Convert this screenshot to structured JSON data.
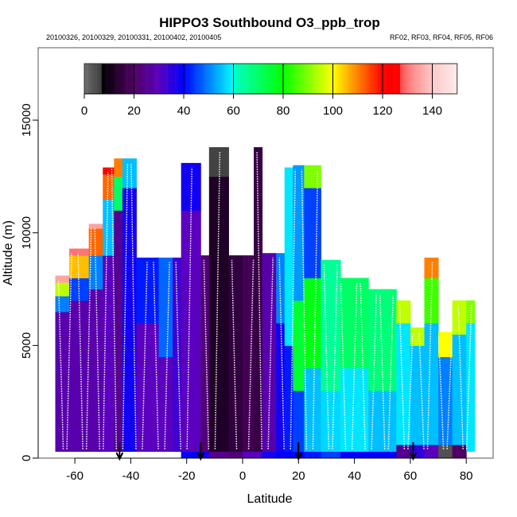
{
  "chart_data": {
    "type": "heatmap",
    "title": "HIPPO3 Southbound O3_ppb_trop",
    "subtitle_left": "20100326, 20100329, 20100331, 20100402, 20100405",
    "subtitle_right": "RF02, RF03, RF04, RF05, RF06",
    "xlabel": "Latitude",
    "ylabel": "Altitude (m)",
    "xlim": [
      -73,
      90
    ],
    "ylim": [
      0,
      18200
    ],
    "xticks": [
      -60,
      -40,
      -20,
      0,
      20,
      40,
      60,
      80
    ],
    "yticks": [
      0,
      5000,
      10000,
      15000
    ],
    "colorbar": {
      "range": [
        0,
        150
      ],
      "ticks": [
        0,
        20,
        40,
        60,
        80,
        100,
        120,
        140
      ]
    },
    "flight_boundaries_lat": [
      -44,
      -15,
      20,
      61
    ],
    "columns": [
      {
        "lat": [
          -67,
          -62
        ],
        "layers": [
          [
            300,
            6500,
            28
          ],
          [
            6500,
            7200,
            50
          ],
          [
            7200,
            7800,
            95
          ],
          [
            7800,
            8100,
            135
          ]
        ]
      },
      {
        "lat": [
          -62,
          -55
        ],
        "layers": [
          [
            300,
            7000,
            28
          ],
          [
            7000,
            8000,
            45
          ],
          [
            8000,
            9000,
            105
          ],
          [
            9000,
            9300,
            130
          ]
        ]
      },
      {
        "lat": [
          -55,
          -50
        ],
        "layers": [
          [
            300,
            7500,
            28
          ],
          [
            7500,
            9000,
            50
          ],
          [
            9000,
            10200,
            112
          ],
          [
            10200,
            10400,
            135
          ]
        ]
      },
      {
        "lat": [
          -50,
          -46
        ],
        "layers": [
          [
            300,
            9000,
            30
          ],
          [
            9000,
            11500,
            55
          ],
          [
            11500,
            12600,
            112
          ],
          [
            12600,
            12900,
            125
          ]
        ]
      },
      {
        "lat": [
          -46,
          -43
        ],
        "layers": [
          [
            300,
            11000,
            25
          ],
          [
            11000,
            12500,
            70
          ],
          [
            12500,
            13300,
            110
          ]
        ]
      },
      {
        "lat": [
          -43,
          -38
        ],
        "layers": [
          [
            300,
            12000,
            38
          ],
          [
            12000,
            13300,
            55
          ]
        ]
      },
      {
        "lat": [
          -38,
          -30
        ],
        "layers": [
          [
            300,
            6000,
            30
          ],
          [
            6000,
            8900,
            42
          ]
        ]
      },
      {
        "lat": [
          -30,
          -25
        ],
        "layers": [
          [
            300,
            4500,
            30
          ],
          [
            4500,
            8900,
            48
          ]
        ]
      },
      {
        "lat": [
          -25,
          -22
        ],
        "layers": [
          [
            300,
            8900,
            33
          ]
        ]
      },
      {
        "lat": [
          -22,
          -15
        ],
        "layers": [
          [
            0,
            300,
            40
          ],
          [
            300,
            11000,
            30
          ],
          [
            11000,
            13100,
            38
          ]
        ]
      },
      {
        "lat": [
          -15,
          -12
        ],
        "layers": [
          [
            0,
            300,
            38
          ],
          [
            300,
            9000,
            22
          ]
        ]
      },
      {
        "lat": [
          -12,
          -5
        ],
        "layers": [
          [
            0,
            300,
            25
          ],
          [
            300,
            12500,
            12
          ],
          [
            12500,
            13800,
            6
          ]
        ]
      },
      {
        "lat": [
          -5,
          0
        ],
        "layers": [
          [
            0,
            300,
            22
          ],
          [
            300,
            9000,
            15
          ]
        ]
      },
      {
        "lat": [
          0,
          4
        ],
        "layers": [
          [
            0,
            300,
            30
          ],
          [
            300,
            9000,
            18
          ]
        ]
      },
      {
        "lat": [
          4,
          7
        ],
        "layers": [
          [
            0,
            300,
            30
          ],
          [
            300,
            13800,
            16
          ]
        ]
      },
      {
        "lat": [
          7,
          12
        ],
        "layers": [
          [
            0,
            300,
            38
          ],
          [
            300,
            9100,
            28
          ]
        ]
      },
      {
        "lat": [
          12,
          15
        ],
        "layers": [
          [
            0,
            300,
            40
          ],
          [
            300,
            6000,
            38
          ],
          [
            6000,
            9100,
            50
          ]
        ]
      },
      {
        "lat": [
          15,
          18
        ],
        "layers": [
          [
            0,
            300,
            40
          ],
          [
            300,
            5000,
            42
          ],
          [
            5000,
            12900,
            58
          ]
        ]
      },
      {
        "lat": [
          18,
          22
        ],
        "layers": [
          [
            0,
            300,
            40
          ],
          [
            300,
            3000,
            45
          ],
          [
            3000,
            7000,
            75
          ],
          [
            7000,
            13000,
            52
          ]
        ]
      },
      {
        "lat": [
          22,
          28
        ],
        "layers": [
          [
            0,
            300,
            42
          ],
          [
            300,
            4000,
            55
          ],
          [
            4000,
            8000,
            78
          ],
          [
            8000,
            12000,
            45
          ],
          [
            12000,
            13000,
            90
          ]
        ]
      },
      {
        "lat": [
          28,
          35
        ],
        "layers": [
          [
            0,
            300,
            45
          ],
          [
            300,
            3000,
            57
          ],
          [
            3000,
            8800,
            65
          ]
        ]
      },
      {
        "lat": [
          35,
          45
        ],
        "layers": [
          [
            0,
            300,
            40
          ],
          [
            300,
            4000,
            58
          ],
          [
            4000,
            8000,
            70
          ]
        ]
      },
      {
        "lat": [
          45,
          55
        ],
        "layers": [
          [
            0,
            300,
            40
          ],
          [
            300,
            3000,
            55
          ],
          [
            3000,
            7500,
            68
          ]
        ]
      },
      {
        "lat": [
          55,
          60
        ],
        "layers": [
          [
            0,
            600,
            25
          ],
          [
            600,
            6000,
            58
          ],
          [
            6000,
            7000,
            95
          ]
        ]
      },
      {
        "lat": [
          60,
          65
        ],
        "layers": [
          [
            0,
            600,
            35
          ],
          [
            600,
            5000,
            55
          ],
          [
            5000,
            5800,
            95
          ]
        ]
      },
      {
        "lat": [
          65,
          70
        ],
        "layers": [
          [
            0,
            600,
            30
          ],
          [
            600,
            6000,
            55
          ],
          [
            6000,
            8000,
            85
          ],
          [
            8000,
            8900,
            110
          ]
        ]
      },
      {
        "lat": [
          70,
          75
        ],
        "layers": [
          [
            0,
            600,
            4
          ],
          [
            600,
            4500,
            50
          ],
          [
            4500,
            5600,
            100
          ]
        ]
      },
      {
        "lat": [
          75,
          80
        ],
        "layers": [
          [
            0,
            600,
            20
          ],
          [
            600,
            5500,
            55
          ],
          [
            5500,
            7000,
            95
          ]
        ]
      },
      {
        "lat": [
          80,
          83
        ],
        "layers": [
          [
            300,
            6000,
            58
          ],
          [
            6000,
            7000,
            90
          ]
        ]
      }
    ],
    "profiles_lat": [
      -65,
      -62,
      -58,
      -55,
      -52,
      -49,
      -46,
      -42,
      -39,
      -35,
      -31,
      -27,
      -23,
      -19,
      -13,
      -9,
      -3,
      3,
      6,
      10,
      14,
      18,
      22,
      26,
      30,
      33,
      36,
      40,
      43,
      47,
      50,
      53,
      57,
      60,
      64,
      67,
      71,
      74,
      78,
      81
    ]
  }
}
